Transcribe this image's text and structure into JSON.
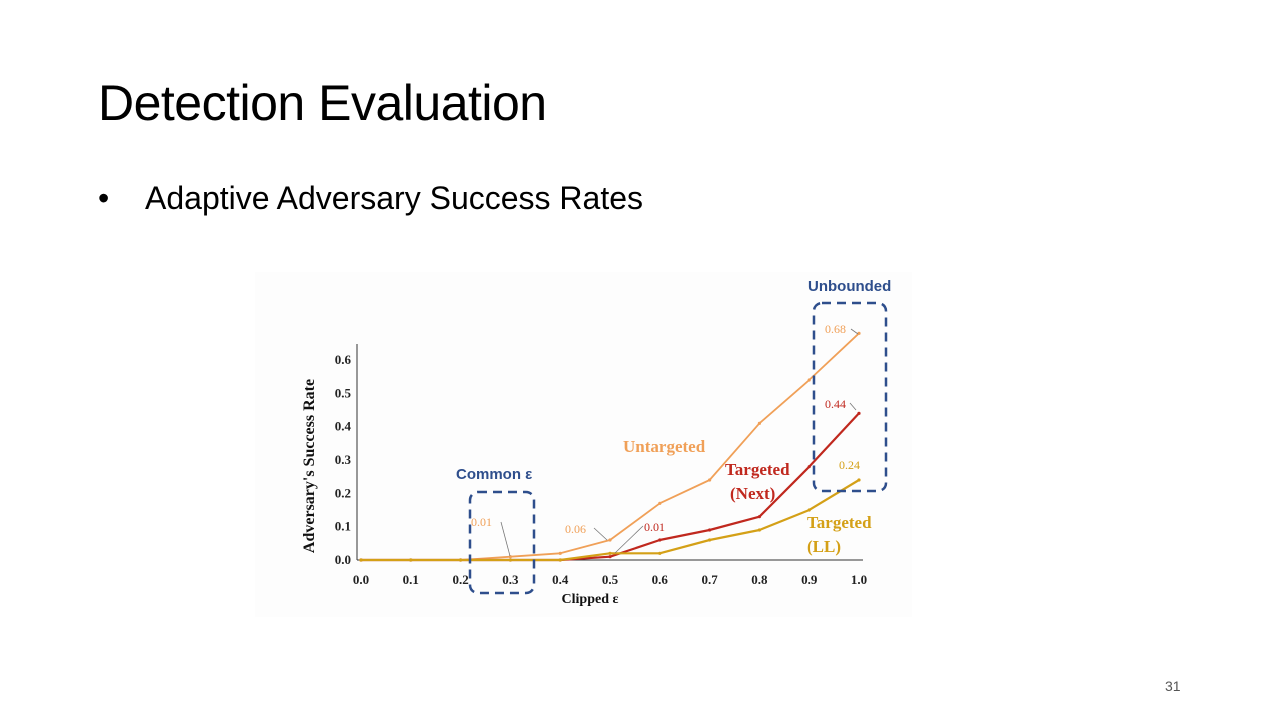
{
  "slide": {
    "title": "Detection Evaluation",
    "bullet_symbol": "•",
    "bullet_text": "Adaptive Adversary Success Rates",
    "page_number": "31"
  },
  "chart_data": {
    "type": "line",
    "xlabel": "Clipped ε",
    "ylabel": "Adversary's Success Rate",
    "xlim": [
      0.0,
      1.0
    ],
    "ylim": [
      0.0,
      0.65
    ],
    "x_ticks": [
      "0.0",
      "0.1",
      "0.2",
      "0.3",
      "0.4",
      "0.5",
      "0.6",
      "0.7",
      "0.8",
      "0.9",
      "1.0"
    ],
    "y_ticks": [
      "0.0",
      "0.1",
      "0.2",
      "0.3",
      "0.4",
      "0.5",
      "0.6"
    ],
    "x": [
      0.0,
      0.1,
      0.2,
      0.3,
      0.4,
      0.5,
      0.6,
      0.7,
      0.8,
      0.9,
      1.0
    ],
    "series": [
      {
        "name": "Untargeted",
        "color": "#f0a058",
        "values": [
          0.0,
          0.0,
          0.0,
          0.01,
          0.02,
          0.06,
          0.17,
          0.24,
          0.41,
          0.54,
          0.68
        ]
      },
      {
        "name": "Targeted (Next)",
        "label_lines": [
          "Targeted",
          "(Next)"
        ],
        "color": "#c0281e",
        "values": [
          0.0,
          0.0,
          0.0,
          0.0,
          0.0,
          0.01,
          0.06,
          0.09,
          0.13,
          0.28,
          0.44
        ]
      },
      {
        "name": "Targeted (LL)",
        "label_lines": [
          "Targeted",
          "(LL)"
        ],
        "color": "#d4a017",
        "values": [
          0.0,
          0.0,
          0.0,
          0.0,
          0.0,
          0.02,
          0.02,
          0.06,
          0.09,
          0.15,
          0.24
        ]
      }
    ],
    "data_labels": [
      {
        "text": "0.01",
        "series": "Untargeted",
        "color": "#f0a058"
      },
      {
        "text": "0.06",
        "series": "Untargeted",
        "color": "#f0a058"
      },
      {
        "text": "0.01",
        "series": "Targeted (Next)",
        "color": "#c0281e"
      },
      {
        "text": "0.68",
        "series": "Untargeted",
        "color": "#f0a058"
      },
      {
        "text": "0.44",
        "series": "Targeted (Next)",
        "color": "#c0281e"
      },
      {
        "text": "0.24",
        "series": "Targeted (LL)",
        "color": "#d4a017"
      }
    ],
    "annotations": [
      {
        "text": "Common ε",
        "color": "#2e4e8c"
      },
      {
        "text": "Unbounded",
        "color": "#2e4e8c"
      }
    ],
    "grid": false,
    "legend": "inline labels"
  }
}
